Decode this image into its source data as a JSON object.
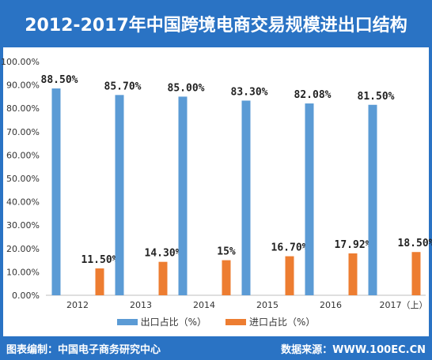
{
  "header": {
    "title": "2012-2017年中国跨境电商交易规模进出口结构"
  },
  "footer": {
    "left": "图表编制：中国电子商务研究中心",
    "right": "数据来源：WWW.100EC.CN"
  },
  "colors": {
    "export": "#5b9bd5",
    "import": "#ed7d31",
    "brand": "#2a73c4"
  },
  "chart_data": {
    "type": "bar",
    "categories": [
      "2012",
      "2013",
      "2014",
      "2015",
      "2016",
      "2017（上）"
    ],
    "series": [
      {
        "name": "出口占比（%）",
        "values": [
          88.5,
          85.7,
          85.0,
          83.3,
          82.08,
          81.5
        ],
        "labels": [
          "88.50%",
          "85.70%",
          "85.00%",
          "83.30%",
          "82.08%",
          "81.50%"
        ]
      },
      {
        "name": "进口占比（%）",
        "values": [
          11.5,
          14.3,
          15,
          16.7,
          17.92,
          18.5
        ],
        "labels": [
          "11.50%",
          "14.30%",
          "15%",
          "16.70%",
          "17.92%",
          "18.50%"
        ]
      }
    ],
    "y_ticks": [
      "0.00%",
      "10.00%",
      "20.00%",
      "30.00%",
      "40.00%",
      "50.00%",
      "60.00%",
      "70.00%",
      "80.00%",
      "90.00%",
      "100.00%"
    ],
    "ylim": [
      0,
      100
    ],
    "grid": false,
    "legend_position": "bottom"
  }
}
